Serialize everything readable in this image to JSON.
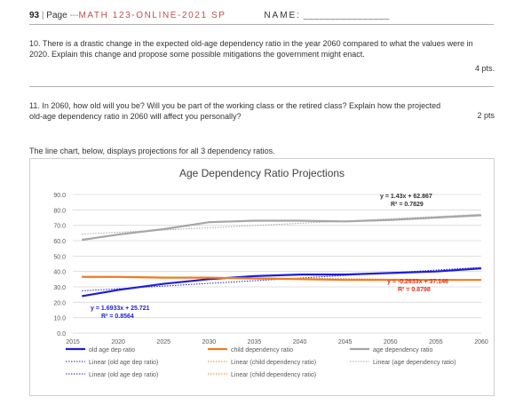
{
  "header": {
    "page_number": "93",
    "page_label": "Page",
    "course": "MATH 123-ONLINE-2021 SP",
    "name_label": "NAME:",
    "name_blank": "________________"
  },
  "questions": [
    {
      "text": "10. There is a drastic change in the expected old-age dependency ratio in the year 2060 compared to what the values were in 2020. Explain this change and propose some possible mitigations the government might enact.",
      "points": "4 pts."
    },
    {
      "text": "11. In 2060, how old will you be? Will you be part of the working class or the retired class? Explain how the projected old-age dependency ratio in 2060 will affect you personally?",
      "points": "2 pts"
    }
  ],
  "intro_text": "The line chart, below, displays projections for all 3 dependency ratios.",
  "chart_data": {
    "type": "line",
    "title": "Age Dependency Ratio Projections",
    "x": [
      2016,
      2020,
      2025,
      2030,
      2035,
      2040,
      2045,
      2050,
      2055,
      2060
    ],
    "xticks": [
      "2015",
      "2020",
      "2025",
      "2030",
      "2035",
      "2040",
      "2045",
      "2050",
      "2055",
      "2060"
    ],
    "ylim": [
      0,
      90
    ],
    "yticks": [
      "0.0",
      "10.0",
      "20.0",
      "30.0",
      "40.0",
      "50.0",
      "60.0",
      "70.0",
      "80.0",
      "90.0"
    ],
    "grid": true,
    "series": [
      {
        "name": "old age dep ratio",
        "color": "#1f1fd6",
        "values": [
          24,
          28,
          32,
          35,
          37,
          38,
          38,
          39,
          40,
          42
        ]
      },
      {
        "name": "child dependency ratio",
        "color": "#f07c1e",
        "values": [
          36.5,
          36.5,
          36,
          36,
          35.5,
          35,
          34.5,
          34.5,
          34.5,
          34.5
        ]
      },
      {
        "name": "age dependency ratio",
        "color": "#a6a6a6",
        "values": [
          60.5,
          64,
          67.5,
          72,
          73,
          73,
          72.5,
          73.5,
          75,
          76.5
        ]
      }
    ],
    "trendlines": [
      {
        "label": "Linear (old age dep ratio)",
        "color": "#1f1fd6",
        "slope": 1.6933,
        "intercept": 25.721
      },
      {
        "label": "Linear (child dependency ratio)",
        "color": "#f07c1e",
        "slope": -0.2633,
        "intercept": 37.146
      },
      {
        "label": "Linear (age dependency ratio)",
        "color": "#a6a6a6",
        "slope": 1.43,
        "intercept": 62.867
      }
    ],
    "trend_labels_extra": [
      "Linear (old age dep ratio)",
      "Linear (child dependency ratio)"
    ],
    "annotations": [
      {
        "eq": "y = 1.6933x + 25.721",
        "r2": "R² = 0.8564",
        "color": "#1f1fd6"
      },
      {
        "eq": "y = -0.2633x + 37.146",
        "r2": "R² = 0.8798",
        "color": "#e03020"
      },
      {
        "eq": "y = 1.43x + 62.867",
        "r2": "R² = 0.7829",
        "color": "#333333"
      }
    ]
  }
}
